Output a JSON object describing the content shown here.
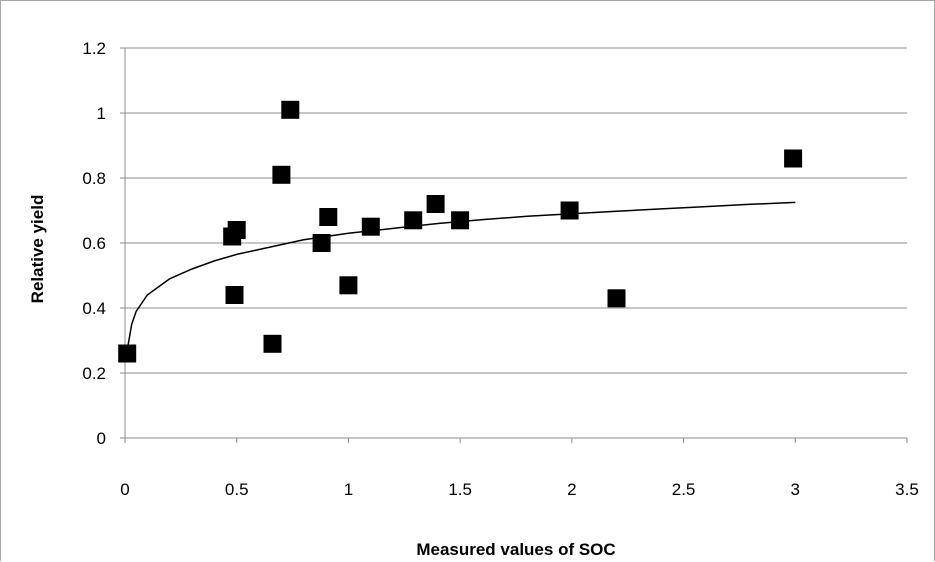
{
  "chart_data": {
    "type": "scatter",
    "title": "",
    "xlabel": "Measured values of SOC",
    "ylabel": "Relative yield",
    "xlim": [
      0,
      3.5
    ],
    "ylim": [
      0,
      1.2
    ],
    "x_ticks": [
      "0",
      "0.5",
      "1",
      "1.5",
      "2",
      "2.5",
      "3",
      "3.5"
    ],
    "x_tick_values": [
      0,
      0.5,
      1,
      1.5,
      2,
      2.5,
      3,
      3.5
    ],
    "y_ticks": [
      "0",
      "0.2",
      "0.4",
      "0.6",
      "0.8",
      "1",
      "1.2"
    ],
    "y_tick_values": [
      0,
      0.2,
      0.4,
      0.6,
      0.8,
      1,
      1.2
    ],
    "grid": "horizontal",
    "legend": "none",
    "marker": "square",
    "colors": {
      "marker": "#000000",
      "trendline": "#000000",
      "gridline": "#8c8c8c",
      "axis": "#8c8c8c",
      "frame": "#a6a6a6"
    },
    "series": [
      {
        "x": [
          0.01,
          0.48,
          0.49,
          0.5,
          0.66,
          0.7,
          0.74,
          0.88,
          0.91,
          1.0,
          1.1,
          1.29,
          1.39,
          1.5,
          1.99,
          2.2,
          2.99
        ],
        "y": [
          0.26,
          0.62,
          0.44,
          0.64,
          0.29,
          0.81,
          1.01,
          0.6,
          0.68,
          0.47,
          0.65,
          0.67,
          0.72,
          0.67,
          0.7,
          0.43,
          0.86
        ]
      }
    ],
    "trendline": {
      "type": "logarithmic",
      "x": [
        0.01,
        0.03,
        0.05,
        0.08,
        0.1,
        0.15,
        0.2,
        0.3,
        0.4,
        0.5,
        0.6,
        0.7,
        0.8,
        0.9,
        1.0,
        1.2,
        1.4,
        1.6,
        1.8,
        2.0,
        2.2,
        2.4,
        2.6,
        2.8,
        3.0
      ],
      "y": [
        0.27,
        0.35,
        0.39,
        0.42,
        0.44,
        0.465,
        0.49,
        0.52,
        0.545,
        0.565,
        0.58,
        0.595,
        0.61,
        0.62,
        0.63,
        0.645,
        0.66,
        0.672,
        0.682,
        0.69,
        0.698,
        0.705,
        0.712,
        0.719,
        0.725
      ]
    }
  }
}
